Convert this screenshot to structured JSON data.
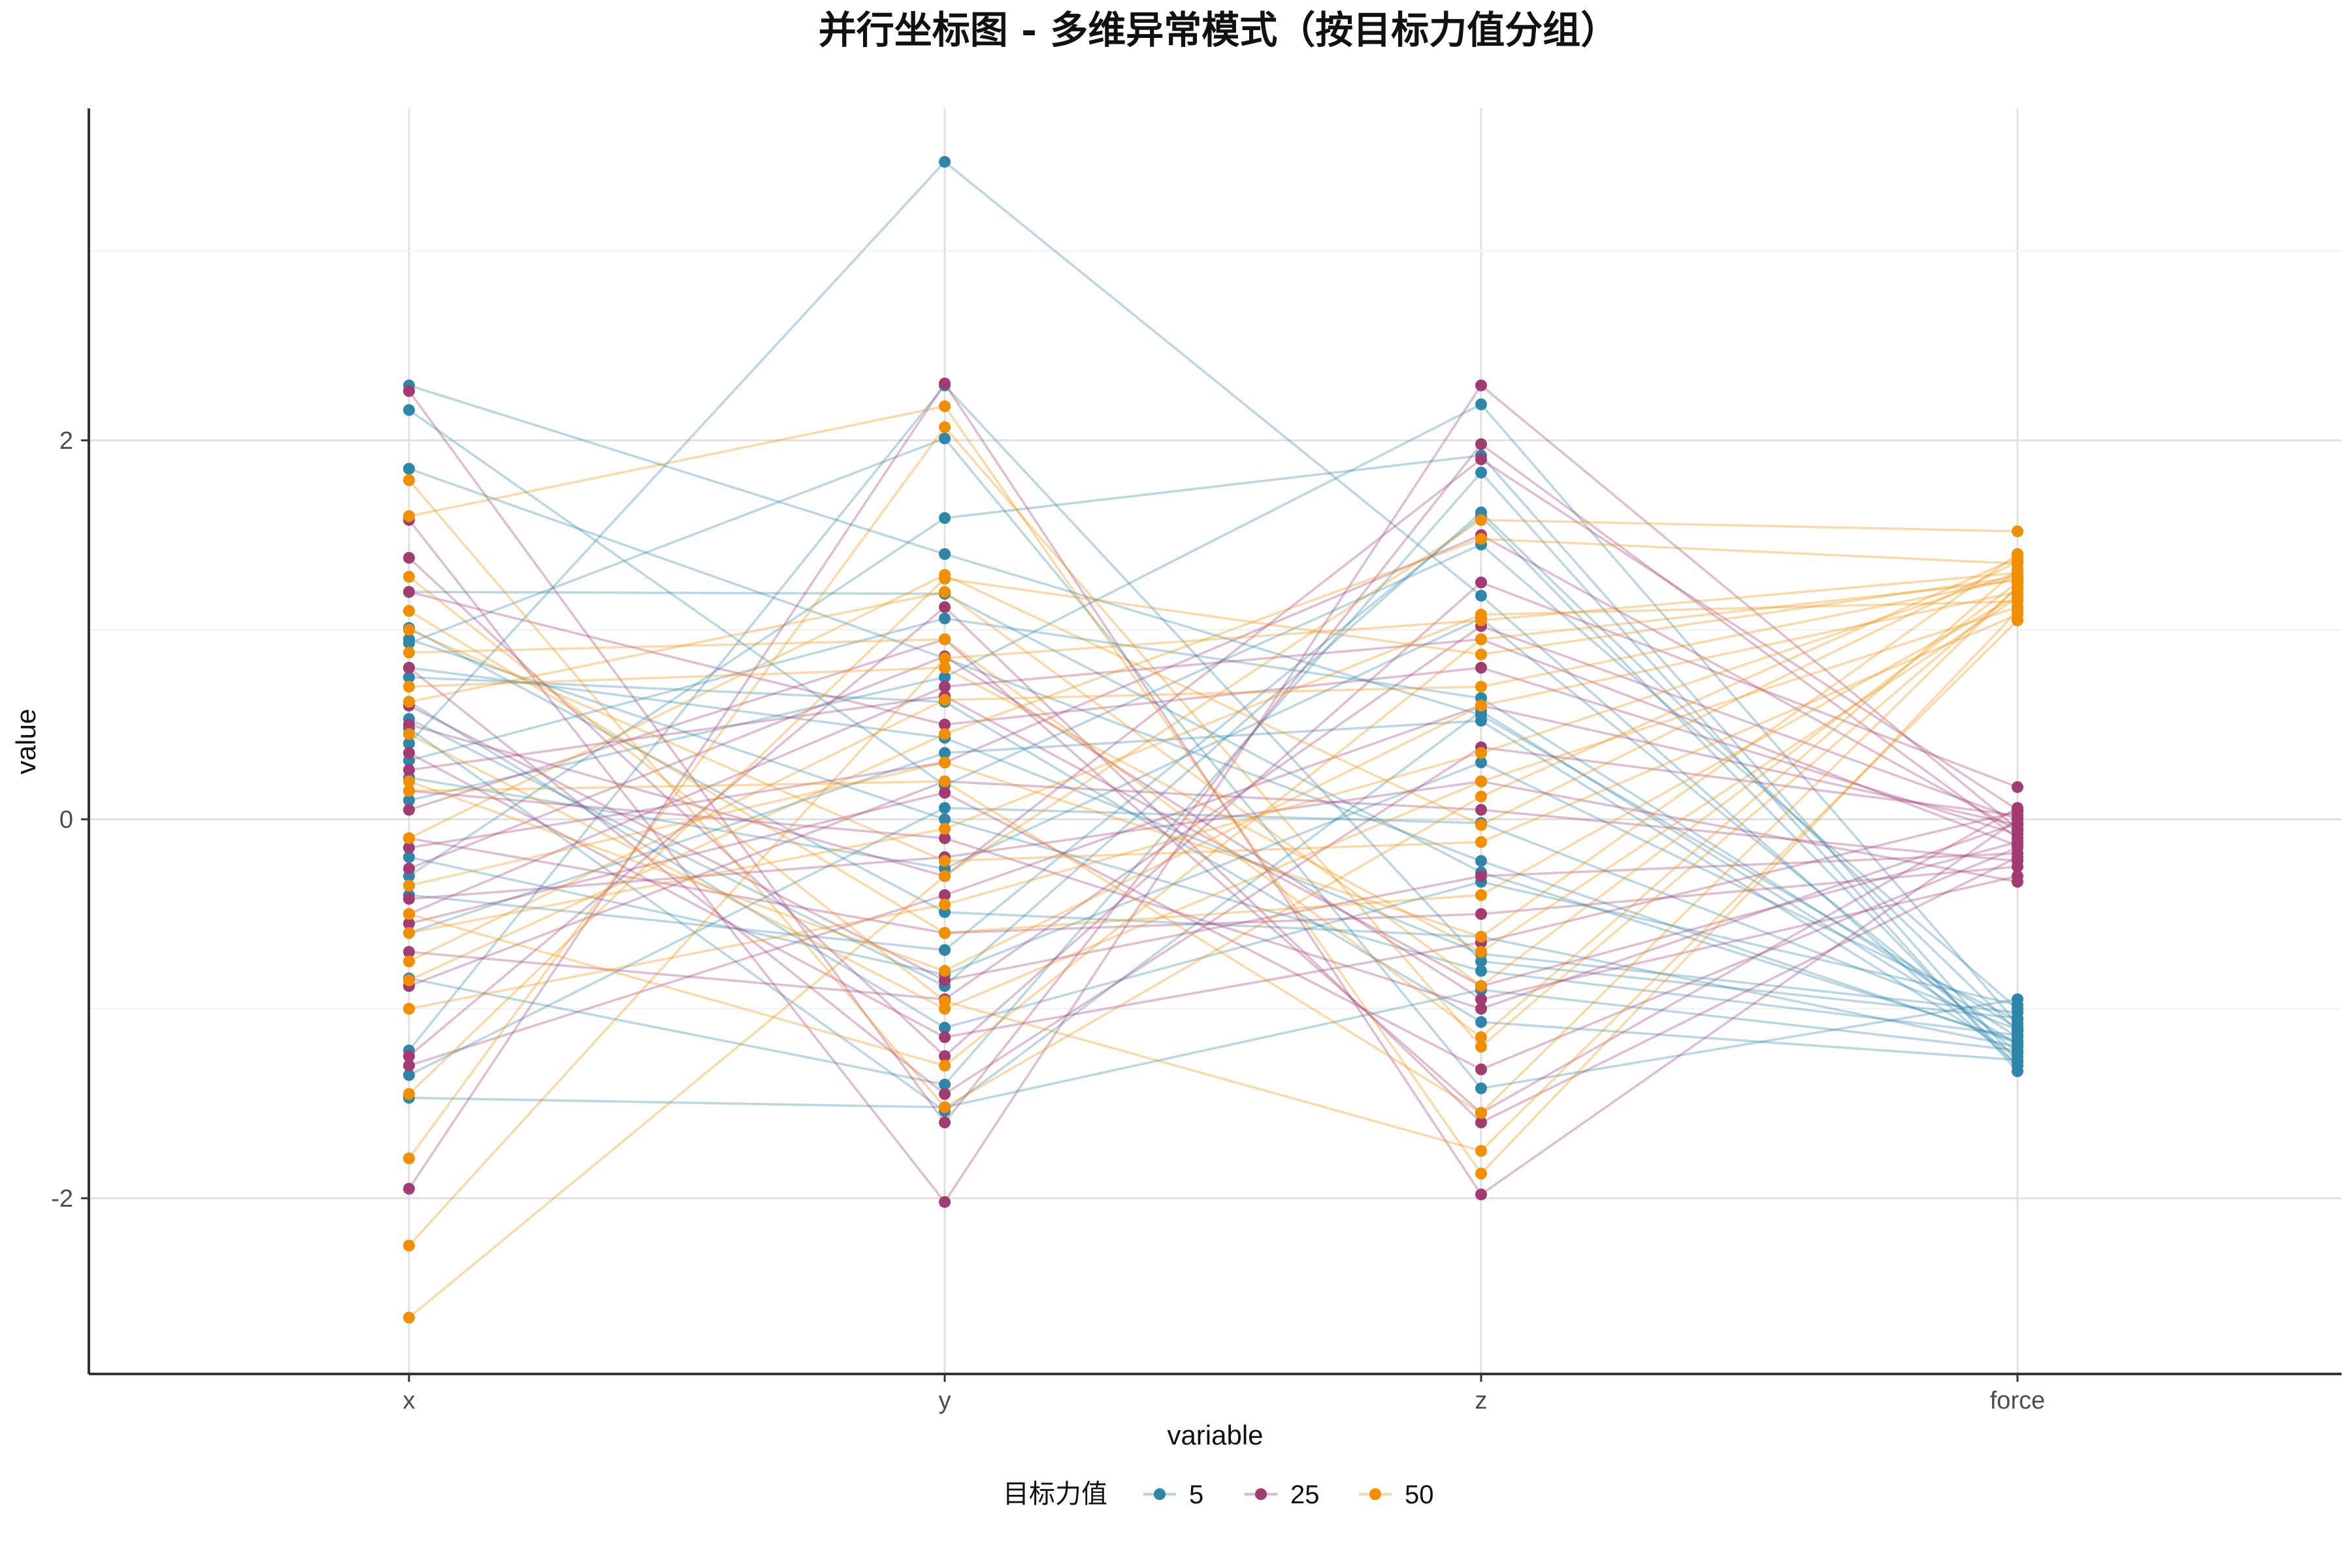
{
  "chart_data": {
    "type": "parallel-coordinates",
    "title": "并行坐标图 - 多维异常模式（按目标力值分组）",
    "xlabel": "variable",
    "ylabel": "value",
    "categories": [
      "x",
      "y",
      "z",
      "force"
    ],
    "yticks": [
      -2,
      0,
      2
    ],
    "ylim": [
      -2.9,
      3.8
    ],
    "grid": true,
    "legend": {
      "title": "目标力值",
      "position": "bottom",
      "entries": [
        {
          "label": "5",
          "color": "#2E86AB"
        },
        {
          "label": "25",
          "color": "#A23B72"
        },
        {
          "label": "50",
          "color": "#F18F01"
        }
      ]
    },
    "series": [
      {
        "group": "5",
        "color": "#2E86AB",
        "lines": [
          [
            -1.47,
            -1.52,
            -0.9,
            -1.22
          ],
          [
            2.29,
            1.4,
            0.55,
            -1.1
          ],
          [
            0.4,
            3.47,
            1.18,
            -1.3
          ],
          [
            1.85,
            0.85,
            -0.22,
            -1.18
          ],
          [
            -1.22,
            2.29,
            -0.75,
            -1.05
          ],
          [
            0.93,
            2.01,
            -1.42,
            -0.95
          ],
          [
            -0.3,
            1.59,
            1.92,
            -1.28
          ],
          [
            0.53,
            -0.88,
            1.62,
            -1.12
          ],
          [
            -0.84,
            -1.4,
            1.83,
            -1.33
          ],
          [
            2.16,
            0.18,
            1.45,
            -1.0
          ],
          [
            0.31,
            1.06,
            0.64,
            -1.15
          ],
          [
            1.01,
            -0.49,
            -0.62,
            -1.2
          ],
          [
            0.1,
            0.75,
            2.19,
            -1.08
          ],
          [
            -0.6,
            0.35,
            0.52,
            -1.25
          ],
          [
            0.62,
            -1.1,
            -0.33,
            -0.98
          ],
          [
            1.2,
            1.19,
            -0.28,
            -1.17
          ],
          [
            -0.4,
            -0.69,
            1.6,
            -1.3
          ],
          [
            0.8,
            0.43,
            -0.71,
            -1.02
          ],
          [
            0.22,
            -0.26,
            1.06,
            -1.23
          ],
          [
            -1.35,
            0.06,
            -0.02,
            -1.11
          ],
          [
            0.48,
            -1.54,
            0.57,
            -1.19
          ],
          [
            0.75,
            0.62,
            -1.07,
            -1.27
          ],
          [
            -0.2,
            -0.82,
            0.3,
            -1.06
          ],
          [
            0.95,
            0.0,
            -0.8,
            -1.14
          ]
        ]
      },
      {
        "group": "25",
        "color": "#A23B72",
        "lines": [
          [
            2.26,
            -1.6,
            1.98,
            -0.1
          ],
          [
            -1.95,
            2.3,
            -1.98,
            0.0
          ],
          [
            1.58,
            -2.02,
            2.29,
            -0.05
          ],
          [
            -1.25,
            1.12,
            -1.6,
            -0.2
          ],
          [
            1.38,
            -1.25,
            1.25,
            0.17
          ],
          [
            -0.26,
            0.86,
            -0.95,
            -0.3
          ],
          [
            0.5,
            -0.3,
            1.9,
            0.05
          ],
          [
            -0.55,
            0.14,
            -1.32,
            -0.15
          ],
          [
            0.8,
            -1.45,
            0.38,
            0.02
          ],
          [
            -0.1,
            -0.6,
            -0.5,
            -0.25
          ],
          [
            1.2,
            0.5,
            0.8,
            -0.08
          ],
          [
            -0.7,
            -0.95,
            1.02,
            0.0
          ],
          [
            0.26,
            0.65,
            -0.88,
            -0.12
          ],
          [
            -0.42,
            -0.2,
            0.2,
            -0.33
          ],
          [
            0.05,
            0.95,
            -1.55,
            0.06
          ],
          [
            -1.3,
            -0.4,
            0.6,
            -0.03
          ],
          [
            0.6,
            -0.85,
            -0.3,
            -0.18
          ],
          [
            -0.15,
            0.3,
            1.5,
            -0.06
          ],
          [
            0.35,
            -1.15,
            -0.65,
            0.04
          ],
          [
            -0.88,
            0.2,
            0.05,
            -0.22
          ],
          [
            0.15,
            -0.1,
            -1.0,
            -0.02
          ],
          [
            -0.5,
            0.7,
            0.95,
            -0.14
          ]
        ]
      },
      {
        "group": "50",
        "color": "#F18F01",
        "lines": [
          [
            -2.63,
            -0.3,
            1.58,
            1.52
          ],
          [
            -2.25,
            0.85,
            1.05,
            1.3
          ],
          [
            -1.79,
            2.07,
            -1.2,
            1.22
          ],
          [
            1.79,
            -1.52,
            0.12,
            1.38
          ],
          [
            1.6,
            2.18,
            -1.87,
            1.1
          ],
          [
            -1.45,
            1.27,
            0.87,
            1.28
          ],
          [
            1.28,
            -0.96,
            -1.75,
            1.05
          ],
          [
            -0.85,
            0.45,
            1.48,
            1.35
          ],
          [
            1.1,
            -0.6,
            -0.4,
            1.18
          ],
          [
            0.62,
            1.2,
            -0.88,
            1.25
          ],
          [
            -0.6,
            -0.05,
            1.08,
            1.15
          ],
          [
            0.88,
            0.95,
            -1.15,
            1.32
          ],
          [
            0.2,
            -0.8,
            0.6,
            1.2
          ],
          [
            -0.35,
            0.3,
            -0.62,
            1.4
          ],
          [
            0.45,
            -1.0,
            0.2,
            1.12
          ],
          [
            -0.75,
            0.63,
            0.7,
            1.27
          ],
          [
            1.0,
            -0.22,
            -0.12,
            1.08
          ],
          [
            -0.1,
            1.29,
            -0.03,
            1.36
          ],
          [
            0.15,
            0.2,
            -1.55,
            1.23
          ],
          [
            -1.0,
            -0.45,
            0.35,
            1.3
          ],
          [
            0.7,
            0.8,
            -0.7,
            1.17
          ],
          [
            -0.5,
            -1.3,
            0.95,
            1.26
          ]
        ]
      }
    ]
  }
}
